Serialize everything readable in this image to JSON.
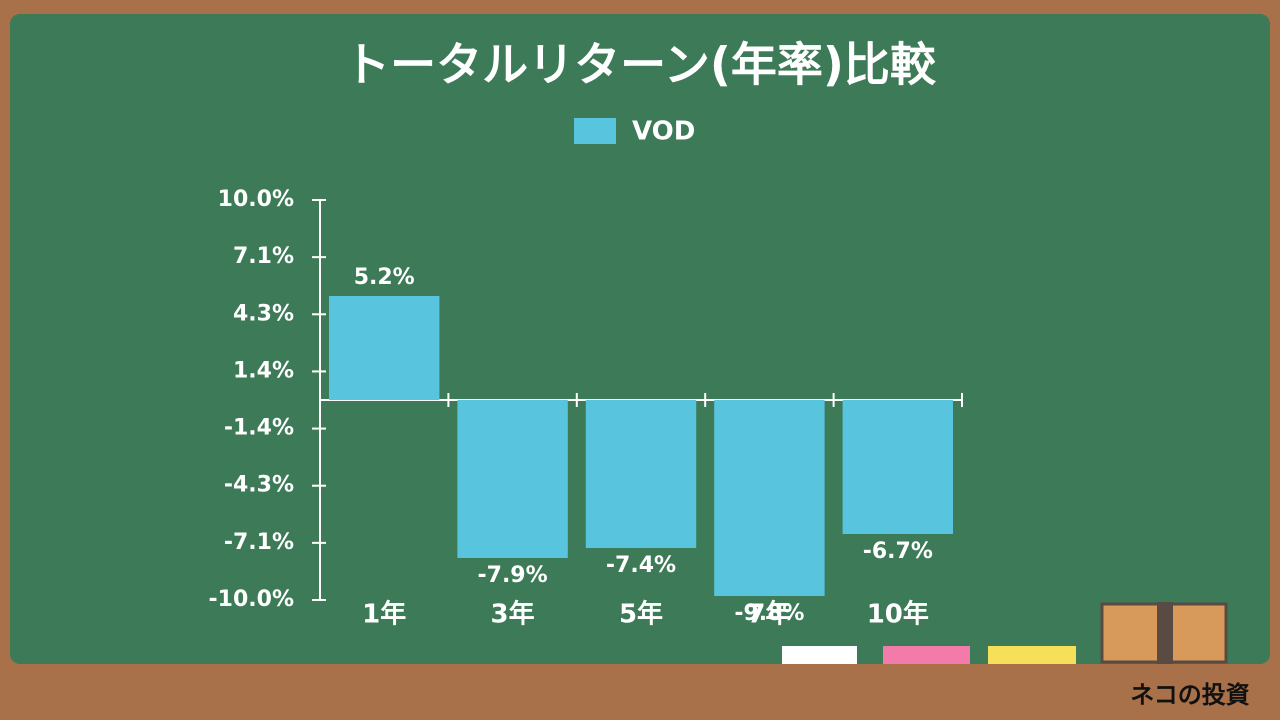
{
  "chart_data": {
    "type": "bar",
    "title": "トータルリターン(年率)比較",
    "categories": [
      "1年",
      "3年",
      "5年",
      "7年",
      "10年"
    ],
    "series": [
      {
        "name": "VOD",
        "color": "#58c4de",
        "values": [
          5.2,
          -7.9,
          -7.4,
          -9.8,
          -6.7
        ],
        "value_labels": [
          "5.2%",
          "-7.9%",
          "-7.4%",
          "-9.8%",
          "-6.7%"
        ]
      }
    ],
    "ylim": [
      -10,
      10
    ],
    "yticks": [
      {
        "value": 10,
        "label": "10.0%"
      },
      {
        "value": 7.143,
        "label": "7.1%"
      },
      {
        "value": 4.286,
        "label": "4.3%"
      },
      {
        "value": 1.429,
        "label": "1.4%"
      },
      {
        "value": -1.429,
        "label": "-1.4%"
      },
      {
        "value": -4.286,
        "label": "-4.3%"
      },
      {
        "value": -7.143,
        "label": "-7.1%"
      },
      {
        "value": -10,
        "label": "-10.0%"
      }
    ],
    "legend": "top"
  },
  "footer": {
    "logo": "ネコの投資"
  }
}
